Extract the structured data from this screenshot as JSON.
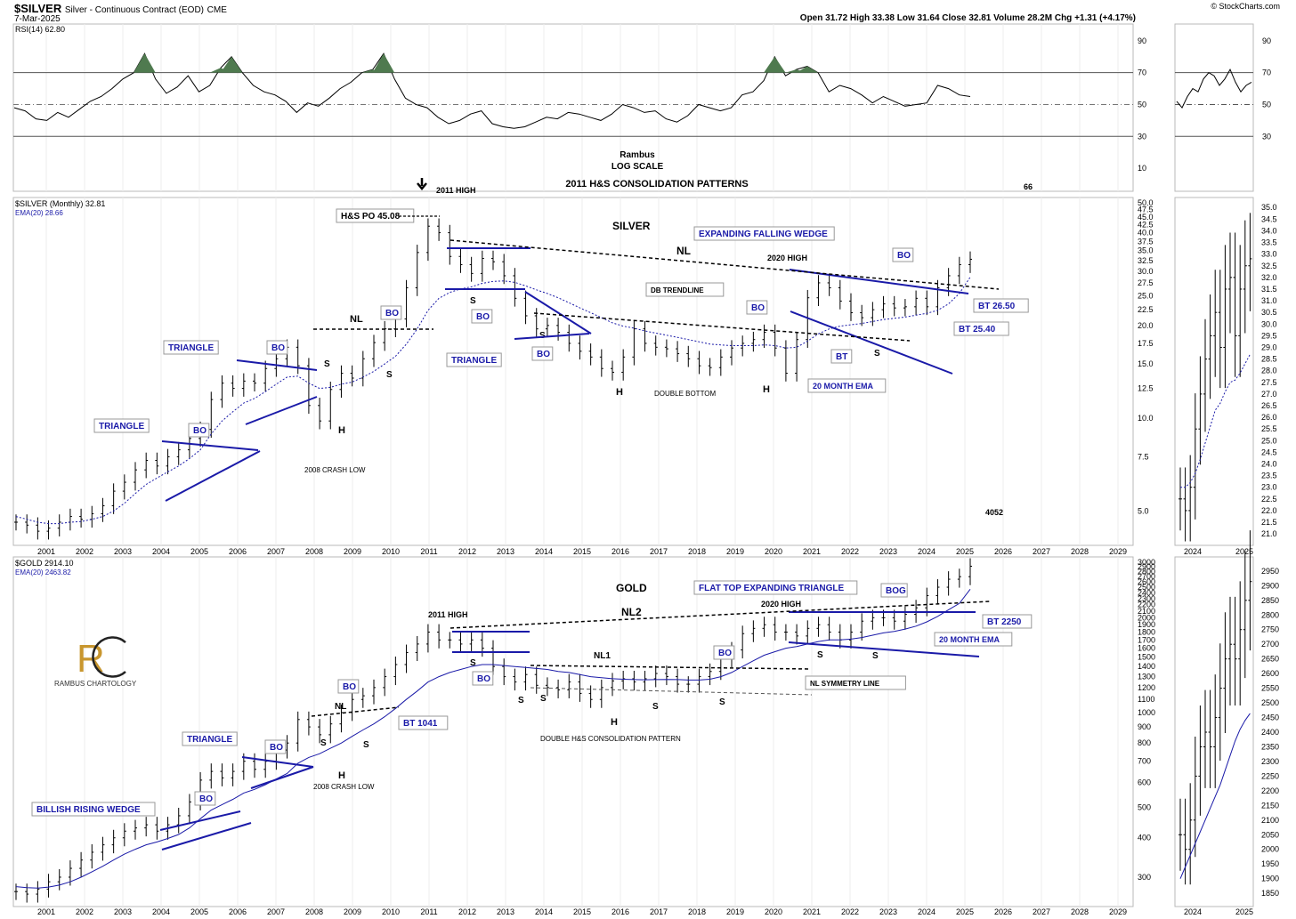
{
  "header": {
    "symbol": "$SILVER",
    "description": "Silver - Continuous Contract (EOD)",
    "exchange": "CME",
    "date": "7-Mar-2025",
    "copyright": "© StockCharts.com",
    "ohlc": "Open 31.72  High 33.38  Low 31.64  Close 32.81  Volume 28.2M  Chg +1.31 (+4.17%)"
  },
  "rsi": {
    "label": "RSI(14) 62.80",
    "levels": [
      "90",
      "70",
      "50",
      "30",
      "10"
    ],
    "right_levels": [
      "90",
      "70",
      "50",
      "30"
    ],
    "notes": [
      "Rambus",
      "LOG SCALE",
      "2011 H&S CONSOLIDATION PATTERNS"
    ],
    "corner_number": "66",
    "values": [
      48,
      46,
      41,
      40,
      45,
      42,
      47,
      52,
      55,
      60,
      66,
      70,
      82,
      66,
      57,
      61,
      68,
      58,
      62,
      73,
      80,
      70,
      62,
      58,
      56,
      52,
      45,
      51,
      49,
      54,
      60,
      64,
      70,
      72,
      82,
      66,
      54,
      50,
      48,
      42,
      38,
      40,
      44,
      46,
      38,
      36,
      35,
      36,
      39,
      42,
      41,
      45,
      44,
      42,
      40,
      44,
      50,
      48,
      45,
      46,
      41,
      39,
      43,
      50,
      48,
      46,
      48,
      56,
      58,
      65,
      80,
      68,
      72,
      74,
      70,
      58,
      62,
      60,
      56,
      51,
      55,
      52,
      49,
      50,
      51,
      62,
      60,
      56,
      55
    ],
    "right_values": [
      52,
      48,
      55,
      60,
      58,
      66,
      70,
      68,
      62,
      66,
      72,
      64,
      58,
      62,
      64
    ]
  },
  "silver": {
    "label": "$SILVER (Monthly) 32.81",
    "ema_label": "EMA(20) 28.66",
    "right_axis": [
      "50.0",
      "47.5",
      "45.0",
      "42.5",
      "40.0",
      "37.5",
      "35.0",
      "32.5",
      "30.0",
      "27.5",
      "25.0",
      "22.5",
      "20.0",
      "17.5",
      "15.0",
      "12.5",
      "10.0",
      "7.5",
      "5.0"
    ],
    "inset_axis": [
      "35.0",
      "34.5",
      "34.0",
      "33.5",
      "33.0",
      "32.5",
      "32.0",
      "31.5",
      "31.0",
      "30.5",
      "30.0",
      "29.5",
      "29.0",
      "28.5",
      "28.0",
      "27.5",
      "27.0",
      "26.5",
      "26.0",
      "25.5",
      "25.0",
      "24.5",
      "24.0",
      "23.5",
      "23.0",
      "22.5",
      "22.0",
      "21.5",
      "21.0"
    ],
    "x_years": [
      "2001",
      "2002",
      "2003",
      "2004",
      "2005",
      "2006",
      "2007",
      "2008",
      "2009",
      "2010",
      "2011",
      "2012",
      "2013",
      "2014",
      "2015",
      "2016",
      "2017",
      "2018",
      "2019",
      "2020",
      "2021",
      "2022",
      "2023",
      "2024",
      "2025",
      "2026",
      "2027",
      "2028",
      "2029"
    ],
    "inset_years": [
      "2024",
      "2025"
    ],
    "title": "SILVER",
    "corner_number": "4052",
    "annotations": {
      "high_2011": "2011 HIGH",
      "hs_po": "H&S PO 45.08",
      "nl": "NL",
      "high_2020": "2020 HIGH",
      "expanding_wedge": "EXPANDING FALLING WEDGE",
      "db_trendline": "DB TRENDLINE",
      "double_bottom": "DOUBLE BOTTOM",
      "month_ema": "20 MONTH EMA",
      "crash_low": "2008 CRASH LOW",
      "triangle": "TRIANGLE",
      "bo": "BO",
      "bt": "BT",
      "bt_2650": "BT 26.50",
      "bt_2540": "BT 25.40",
      "h": "H",
      "s": "S"
    },
    "closes": [
      4.6,
      4.5,
      4.3,
      4.4,
      4.6,
      4.8,
      4.7,
      4.9,
      5.2,
      5.8,
      6.2,
      6.8,
      7.3,
      7.0,
      7.5,
      7.9,
      8.6,
      9.2,
      11.5,
      13.0,
      12.5,
      13.2,
      13.0,
      14.5,
      15.6,
      17.0,
      14.8,
      11.0,
      9.8,
      12.4,
      14.0,
      13.5,
      15.6,
      17.6,
      19.5,
      21.0,
      26.5,
      34.5,
      42.0,
      40.0,
      33.5,
      31.5,
      29.5,
      33.0,
      32.2,
      29.0,
      24.5,
      21.5,
      19.5,
      20.0,
      19.0,
      17.5,
      16.5,
      15.8,
      14.5,
      14.1,
      15.8,
      19.5,
      17.5,
      17.0,
      16.8,
      16.2,
      15.6,
      14.8,
      14.6,
      15.8,
      16.9,
      17.5,
      18.0,
      19.0,
      16.9,
      14.0,
      18.0,
      24.6,
      27.5,
      26.5,
      24.0,
      22.0,
      21.2,
      22.5,
      23.5,
      22.8,
      23.0,
      24.5,
      23.0,
      26.5,
      29.0,
      31.5,
      32.8
    ],
    "ema": [
      4.8,
      4.7,
      4.6,
      4.55,
      4.55,
      4.6,
      4.62,
      4.7,
      4.8,
      5.0,
      5.3,
      5.7,
      6.1,
      6.4,
      6.7,
      7.0,
      7.4,
      7.9,
      8.9,
      9.8,
      10.5,
      11.2,
      11.6,
      12.2,
      12.9,
      13.6,
      13.7,
      13.0,
      12.5,
      12.6,
      12.9,
      13.1,
      13.6,
      14.2,
      15.0,
      15.9,
      17.4,
      19.5,
      22.4,
      24.5,
      25.6,
      26.3,
      26.7,
      27.4,
      27.8,
      27.9,
      27.6,
      26.9,
      26.1,
      25.4,
      24.6,
      23.7,
      22.8,
      22.0,
      21.2,
      20.4,
      19.9,
      19.6,
      19.2,
      18.9,
      18.6,
      18.3,
      18.0,
      17.7,
      17.4,
      17.3,
      17.2,
      17.2,
      17.2,
      17.3,
      17.2,
      16.9,
      17.0,
      17.8,
      18.8,
      19.5,
      19.9,
      20.1,
      20.3,
      20.6,
      20.9,
      21.1,
      21.3,
      21.6,
      21.9,
      22.4,
      23.5,
      25.4,
      28.7
    ],
    "inset_closes": [
      22.5,
      22.0,
      23.0,
      25.5,
      27.0,
      28.5,
      29.5,
      30.5,
      29.0,
      31.5,
      32.0,
      29.5,
      31.5,
      32.5,
      32.8
    ],
    "inset_ema": [
      23.0,
      23.0,
      23.2,
      23.6,
      24.2,
      24.9,
      25.6,
      26.3,
      26.6,
      27.1,
      27.5,
      27.6,
      27.9,
      28.3,
      28.7
    ]
  },
  "gold": {
    "label": "$GOLD 2914.10",
    "ema_label": "EMA(20) 2463.82",
    "right_axis": [
      "3000",
      "2900",
      "2800",
      "2700",
      "2600",
      "2500",
      "2400",
      "2300",
      "2200",
      "2100",
      "2000",
      "1900",
      "1800",
      "1700",
      "1600",
      "1500",
      "1400",
      "1300",
      "1200",
      "1100",
      "1000",
      "900",
      "800",
      "700",
      "600",
      "500",
      "400",
      "300"
    ],
    "inset_axis": [
      "2950",
      "2900",
      "2850",
      "2800",
      "2750",
      "2700",
      "2650",
      "2600",
      "2550",
      "2500",
      "2450",
      "2400",
      "2350",
      "2300",
      "2250",
      "2200",
      "2150",
      "2100",
      "2050",
      "2000",
      "1950",
      "1900",
      "1850"
    ],
    "x_years": [
      "2001",
      "2002",
      "2003",
      "2004",
      "2005",
      "2006",
      "2007",
      "2008",
      "2009",
      "2010",
      "2011",
      "2012",
      "2013",
      "2014",
      "2015",
      "2016",
      "2017",
      "2018",
      "2019",
      "2020",
      "2021",
      "2022",
      "2023",
      "2024",
      "2025",
      "2026",
      "2027",
      "2028",
      "2029"
    ],
    "inset_years": [
      "2024",
      "2025"
    ],
    "title": "GOLD",
    "logo_text": "RAMBUS CHARTOLOGY",
    "annotations": {
      "high_2011": "2011 HIGH",
      "nl2": "NL2",
      "nl1": "NL1",
      "nl": "NL",
      "high_2020": "2020 HIGH",
      "flat_top": "FLAT TOP EXPANDING TRIANGLE",
      "bog": "BOG",
      "bt_2250": "BT 2250",
      "month_ema": "20 MONTH EMA",
      "nl_symmetry": "NL SYMMETRY LINE",
      "double_hs": "DOUBLE H&S CONSOLIDATION PATTERN",
      "crash_low": "2008 CRASH LOW",
      "triangle": "TRIANGLE",
      "rising_wedge": "BILLISH RISING WEDGE",
      "bt_1041": "BT 1041",
      "bo": "BO",
      "h": "H",
      "s": "S"
    },
    "closes": [
      270,
      265,
      275,
      290,
      300,
      320,
      340,
      360,
      380,
      400,
      420,
      430,
      440,
      420,
      440,
      470,
      520,
      610,
      650,
      620,
      650,
      700,
      660,
      700,
      760,
      800,
      950,
      900,
      850,
      920,
      1000,
      1100,
      1130,
      1200,
      1300,
      1420,
      1550,
      1650,
      1800,
      1700,
      1700,
      1650,
      1700,
      1600,
      1400,
      1300,
      1250,
      1320,
      1220,
      1200,
      1180,
      1250,
      1150,
      1100,
      1200,
      1260,
      1280,
      1250,
      1280,
      1330,
      1300,
      1230,
      1230,
      1300,
      1350,
      1480,
      1580,
      1780,
      1850,
      1900,
      1800,
      1800,
      1750,
      1850,
      1900,
      1800,
      1700,
      1800,
      1950,
      2000,
      2000,
      1950,
      2050,
      2150,
      2350,
      2500,
      2650,
      2700,
      2914
    ],
    "ema": [
      280,
      278,
      277,
      279,
      283,
      290,
      300,
      312,
      325,
      340,
      355,
      368,
      380,
      388,
      398,
      410,
      430,
      460,
      490,
      510,
      530,
      555,
      570,
      590,
      615,
      640,
      690,
      720,
      740,
      770,
      800,
      840,
      880,
      920,
      970,
      1030,
      1100,
      1170,
      1250,
      1300,
      1340,
      1370,
      1400,
      1420,
      1420,
      1410,
      1400,
      1390,
      1380,
      1370,
      1350,
      1340,
      1320,
      1300,
      1290,
      1280,
      1275,
      1272,
      1270,
      1272,
      1274,
      1272,
      1268,
      1268,
      1275,
      1300,
      1340,
      1400,
      1460,
      1520,
      1560,
      1600,
      1620,
      1650,
      1680,
      1700,
      1700,
      1710,
      1730,
      1760,
      1790,
      1810,
      1840,
      1880,
      1940,
      2020,
      2120,
      2220,
      2464
    ],
    "inset_closes": [
      2050,
      2000,
      2100,
      2250,
      2350,
      2400,
      2350,
      2450,
      2550,
      2650,
      2700,
      2650,
      2750,
      2850,
      2914
    ],
    "inset_ema": [
      1900,
      1940,
      1980,
      2020,
      2060,
      2100,
      2140,
      2180,
      2220,
      2270,
      2320,
      2370,
      2410,
      2440,
      2464
    ]
  }
}
